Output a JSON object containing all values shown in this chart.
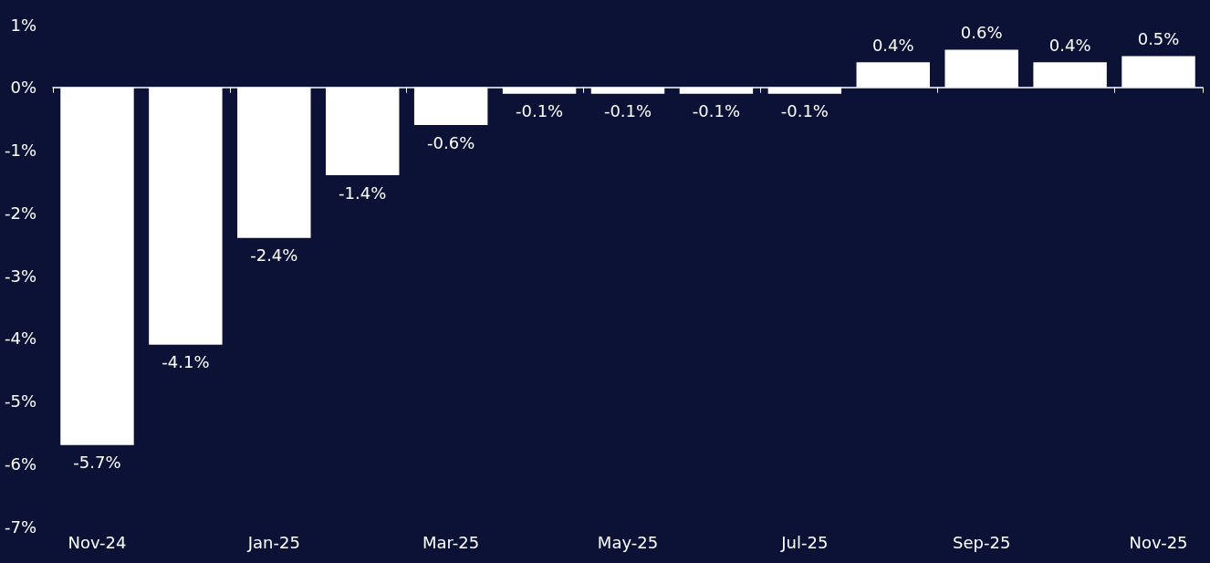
{
  "chart_data": {
    "type": "bar",
    "categories": [
      "Nov-24",
      null,
      "Jan-25",
      null,
      "Mar-25",
      null,
      "May-25",
      null,
      "Jul-25",
      null,
      "Sep-25",
      null,
      "Nov-25"
    ],
    "values": [
      -5.7,
      -4.1,
      -2.4,
      -1.4,
      -0.6,
      -0.1,
      -0.1,
      -0.1,
      -0.1,
      0.4,
      0.6,
      0.4,
      0.5
    ],
    "value_labels": [
      "-5.7%",
      "-4.1%",
      "-2.4%",
      "-1.4%",
      "-0.6%",
      "-0.1%",
      "-0.1%",
      "-0.1%",
      "-0.1%",
      "0.4%",
      "0.6%",
      "0.4%",
      "0.5%"
    ],
    "color": "#ffffff",
    "ylim": [
      -7,
      1
    ],
    "yticks": [
      {
        "value": -7,
        "label": "-7%"
      },
      {
        "value": -6,
        "label": "-6%"
      },
      {
        "value": -5,
        "label": "-5%"
      },
      {
        "value": -4,
        "label": "-4%"
      },
      {
        "value": -3,
        "label": "-3%"
      },
      {
        "value": -2,
        "label": "-2%"
      },
      {
        "value": -1,
        "label": "-1%"
      },
      {
        "value": 0,
        "label": "0%"
      },
      {
        "value": 1,
        "label": "1%"
      }
    ]
  }
}
